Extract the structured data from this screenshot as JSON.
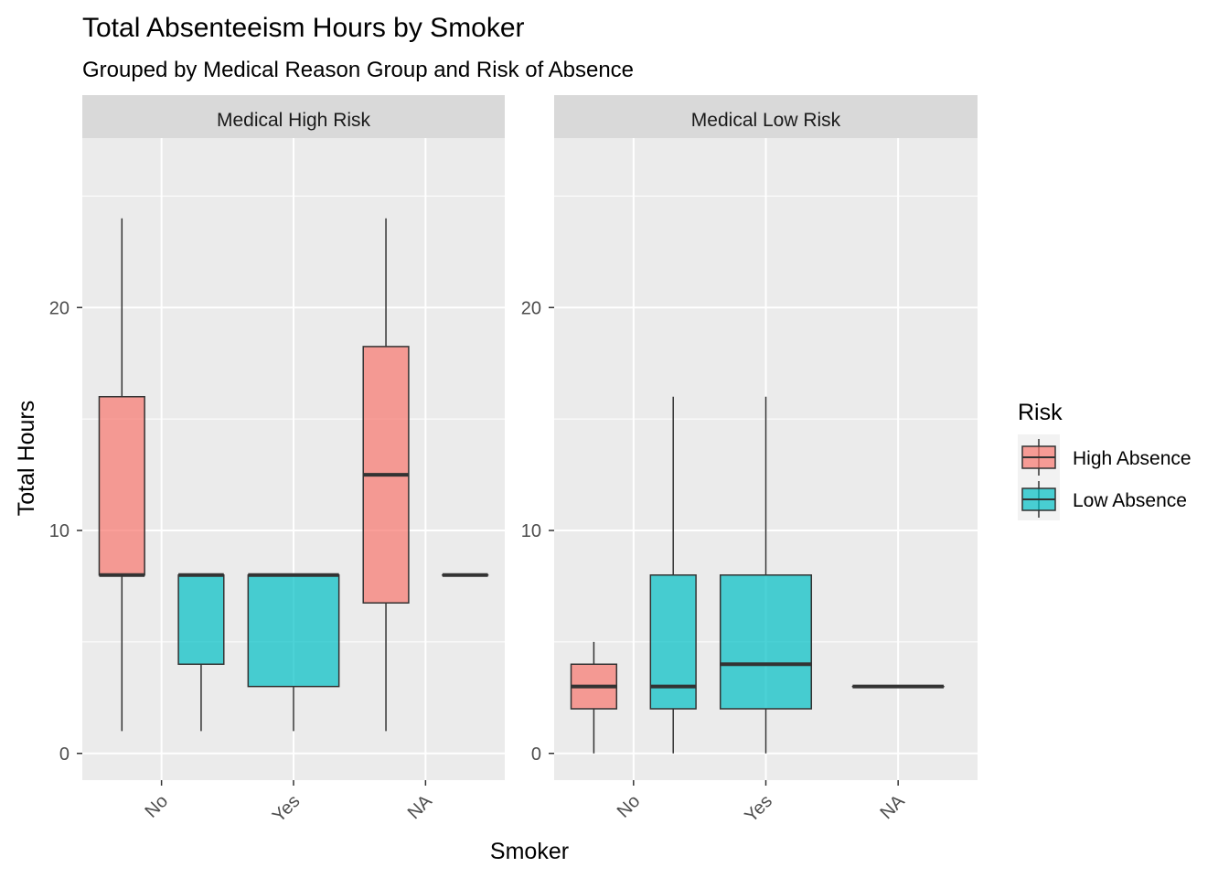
{
  "chart_data": {
    "type": "box",
    "title": "Total Absenteeism Hours by Smoker",
    "subtitle": "Grouped by Medical Reason Group and Risk of Absence",
    "xlabel": "Smoker",
    "ylabel": "Total Hours",
    "categories": [
      "No",
      "Yes",
      "NA"
    ],
    "ylim": [
      -1.2,
      27.6
    ],
    "yticks": [
      0,
      10,
      20
    ],
    "grid": true,
    "legend": {
      "title": "Risk",
      "position": "right",
      "entries": [
        {
          "label": "High Absence",
          "color": "#F8766D"
        },
        {
          "label": "Low Absence",
          "color": "#00BFC4"
        }
      ]
    },
    "panels": [
      {
        "name": "Medical High Risk",
        "boxes": [
          {
            "category": "No",
            "group": "High Absence",
            "min": 1,
            "q1": 8,
            "median": 8,
            "q3": 16,
            "max": 24
          },
          {
            "category": "No",
            "group": "Low Absence",
            "min": 1,
            "q1": 4,
            "median": 8,
            "q3": 8,
            "max": 8
          },
          {
            "category": "Yes",
            "group": "Low Absence",
            "min": 1,
            "q1": 3,
            "median": 8,
            "q3": 8,
            "max": 8
          },
          {
            "category": "NA",
            "group": "High Absence",
            "min": 1,
            "q1": 6.75,
            "median": 12.5,
            "q3": 18.25,
            "max": 24
          },
          {
            "category": "NA",
            "group": "Low Absence",
            "min": 8,
            "q1": 8,
            "median": 8,
            "q3": 8,
            "max": 8
          }
        ]
      },
      {
        "name": "Medical Low Risk",
        "boxes": [
          {
            "category": "No",
            "group": "High Absence",
            "min": 0,
            "q1": 2,
            "median": 3,
            "q3": 4,
            "max": 5
          },
          {
            "category": "No",
            "group": "Low Absence",
            "min": 0,
            "q1": 2,
            "median": 3,
            "q3": 8,
            "max": 16
          },
          {
            "category": "Yes",
            "group": "Low Absence",
            "min": 0,
            "q1": 2,
            "median": 4,
            "q3": 8,
            "max": 16
          },
          {
            "category": "NA",
            "group": "Low Absence",
            "min": 3,
            "q1": 3,
            "median": 3,
            "q3": 3,
            "max": 3
          }
        ]
      }
    ]
  },
  "colors": {
    "panel_bg": "#EBEBEB",
    "strip_bg": "#D9D9D9",
    "grid": "#FFFFFF",
    "box_outline": "#333333",
    "High Absence": "#F8766D",
    "Low Absence": "#00BFC4"
  }
}
